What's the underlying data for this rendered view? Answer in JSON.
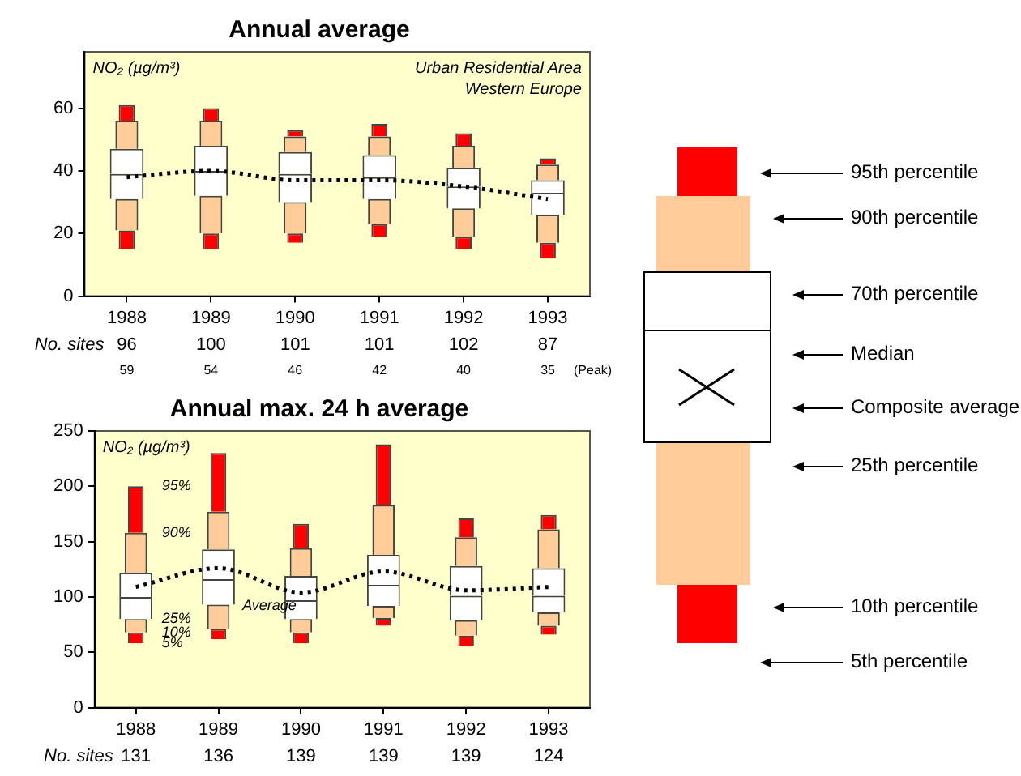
{
  "chart_data": [
    {
      "type": "bar",
      "title": "Annual average",
      "ylabel": "NO₂ (µg/m³)",
      "categories": [
        "1988",
        "1989",
        "1990",
        "1991",
        "1992",
        "1993"
      ],
      "series": [
        {
          "color": "#ff0000",
          "base": [
            15,
            15,
            17,
            19,
            15,
            12
          ],
          "values": [
            6,
            5,
            3,
            4,
            4,
            5
          ]
        },
        {
          "color": "#ffcc99",
          "base": [
            21,
            20,
            20,
            23,
            19,
            17
          ],
          "values": [
            10,
            12,
            10,
            8,
            9,
            9
          ]
        },
        {
          "color": "#ffffff",
          "base": [
            31,
            32,
            30,
            31,
            28,
            26
          ],
          "values": [
            8,
            8,
            9,
            7,
            7,
            7
          ]
        },
        {
          "color": "#ffffff",
          "base": [
            39,
            40,
            39,
            38,
            35,
            33
          ],
          "values": [
            8,
            8,
            7,
            7,
            6,
            4
          ]
        },
        {
          "color": "#ffcc99",
          "base": [
            47,
            48,
            46,
            45,
            41,
            37
          ],
          "values": [
            9,
            8,
            5,
            6,
            7,
            5
          ]
        },
        {
          "color": "#ff0000",
          "base": [
            56,
            56,
            51,
            51,
            48,
            42
          ],
          "values": [
            5,
            4,
            2,
            4,
            4,
            2
          ]
        },
        {
          "type": "line",
          "color": "#000000",
          "line_style": "dotted",
          "marker": "none",
          "values": [
            38,
            40,
            37,
            37,
            35,
            31
          ]
        }
      ],
      "ylim": [
        0,
        78
      ],
      "yticks": [
        0,
        20,
        40,
        60
      ],
      "grid": false,
      "legend": false,
      "annotations": [
        "Urban Residential Area",
        "Western Europe",
        "No. sites",
        "96",
        "100",
        "101",
        "101",
        "102",
        "87",
        "59",
        "54",
        "46",
        "42",
        "40",
        "35",
        "(Peak)"
      ]
    },
    {
      "type": "bar",
      "title": "Annual max. 24 h average",
      "ylabel": "NO₂ (µg/m³)",
      "categories": [
        "1988",
        "1989",
        "1990",
        "1991",
        "1992",
        "1993"
      ],
      "series": [
        {
          "color": "#ff0000",
          "base": [
            58,
            62,
            58,
            74,
            56,
            66
          ],
          "values": [
            10,
            9,
            10,
            7,
            9,
            8
          ]
        },
        {
          "color": "#ffcc99",
          "base": [
            68,
            71,
            68,
            81,
            65,
            74
          ],
          "values": [
            12,
            22,
            12,
            11,
            14,
            12
          ]
        },
        {
          "color": "#ffffff",
          "base": [
            80,
            93,
            80,
            92,
            79,
            86
          ],
          "values": [
            20,
            23,
            17,
            19,
            22,
            15
          ]
        },
        {
          "color": "#ffffff",
          "base": [
            100,
            116,
            97,
            111,
            101,
            101
          ],
          "values": [
            22,
            27,
            22,
            27,
            27,
            25
          ]
        },
        {
          "color": "#ffcc99",
          "base": [
            122,
            143,
            119,
            138,
            128,
            126
          ],
          "values": [
            36,
            34,
            25,
            45,
            26,
            35
          ]
        },
        {
          "color": "#ff0000",
          "base": [
            158,
            177,
            144,
            183,
            154,
            161
          ],
          "values": [
            42,
            53,
            22,
            55,
            17,
            13
          ]
        },
        {
          "type": "line",
          "name": "Average",
          "color": "#000000",
          "line_style": "dotted",
          "marker": "none",
          "values": [
            109,
            126,
            104,
            123,
            106,
            109
          ]
        }
      ],
      "ylim": [
        0,
        250
      ],
      "yticks": [
        0,
        50,
        100,
        150,
        200,
        250
      ],
      "grid": false,
      "legend": false,
      "annotations": [
        {
          "text": "95%",
          "x": "1988",
          "y": 200
        },
        {
          "text": "90%",
          "x": "1988",
          "y": 158
        },
        {
          "text": "25%",
          "x": "1988",
          "y": 80
        },
        {
          "text": "10%",
          "x": "1988",
          "y": 68
        },
        {
          "text": "5%",
          "x": "1988",
          "y": 58
        },
        "No. sites",
        "131",
        "136",
        "139",
        "139",
        "139",
        "124"
      ]
    },
    {
      "type": "other",
      "annotations": [
        "95th percentile",
        "90th percentile",
        "70th percentile",
        "Median",
        "Composite average",
        "25th percentile",
        "10th percentile",
        "5th percentile"
      ]
    }
  ]
}
